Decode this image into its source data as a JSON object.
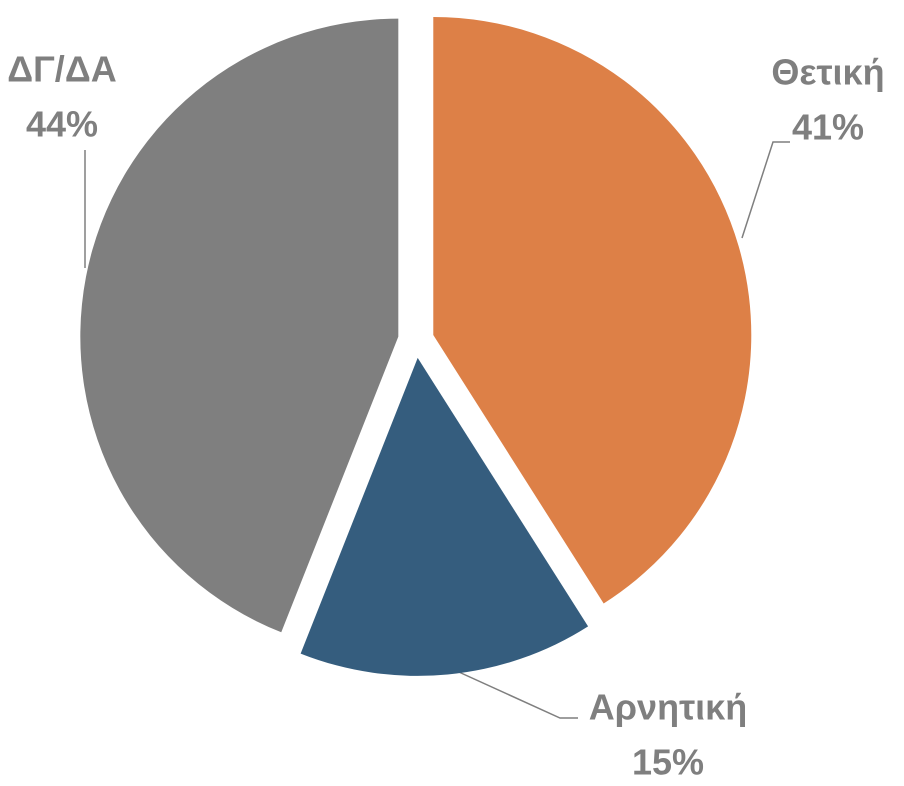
{
  "chart_data": {
    "type": "pie",
    "categories": [
      "Θετική",
      "Αρνητική",
      "ΔΓ/ΔΑ"
    ],
    "values": [
      41,
      15,
      44
    ],
    "value_labels": [
      "41%",
      "15%",
      "44%"
    ],
    "colors": [
      "#dd8047",
      "#355d7e",
      "#7f7f7f"
    ]
  }
}
